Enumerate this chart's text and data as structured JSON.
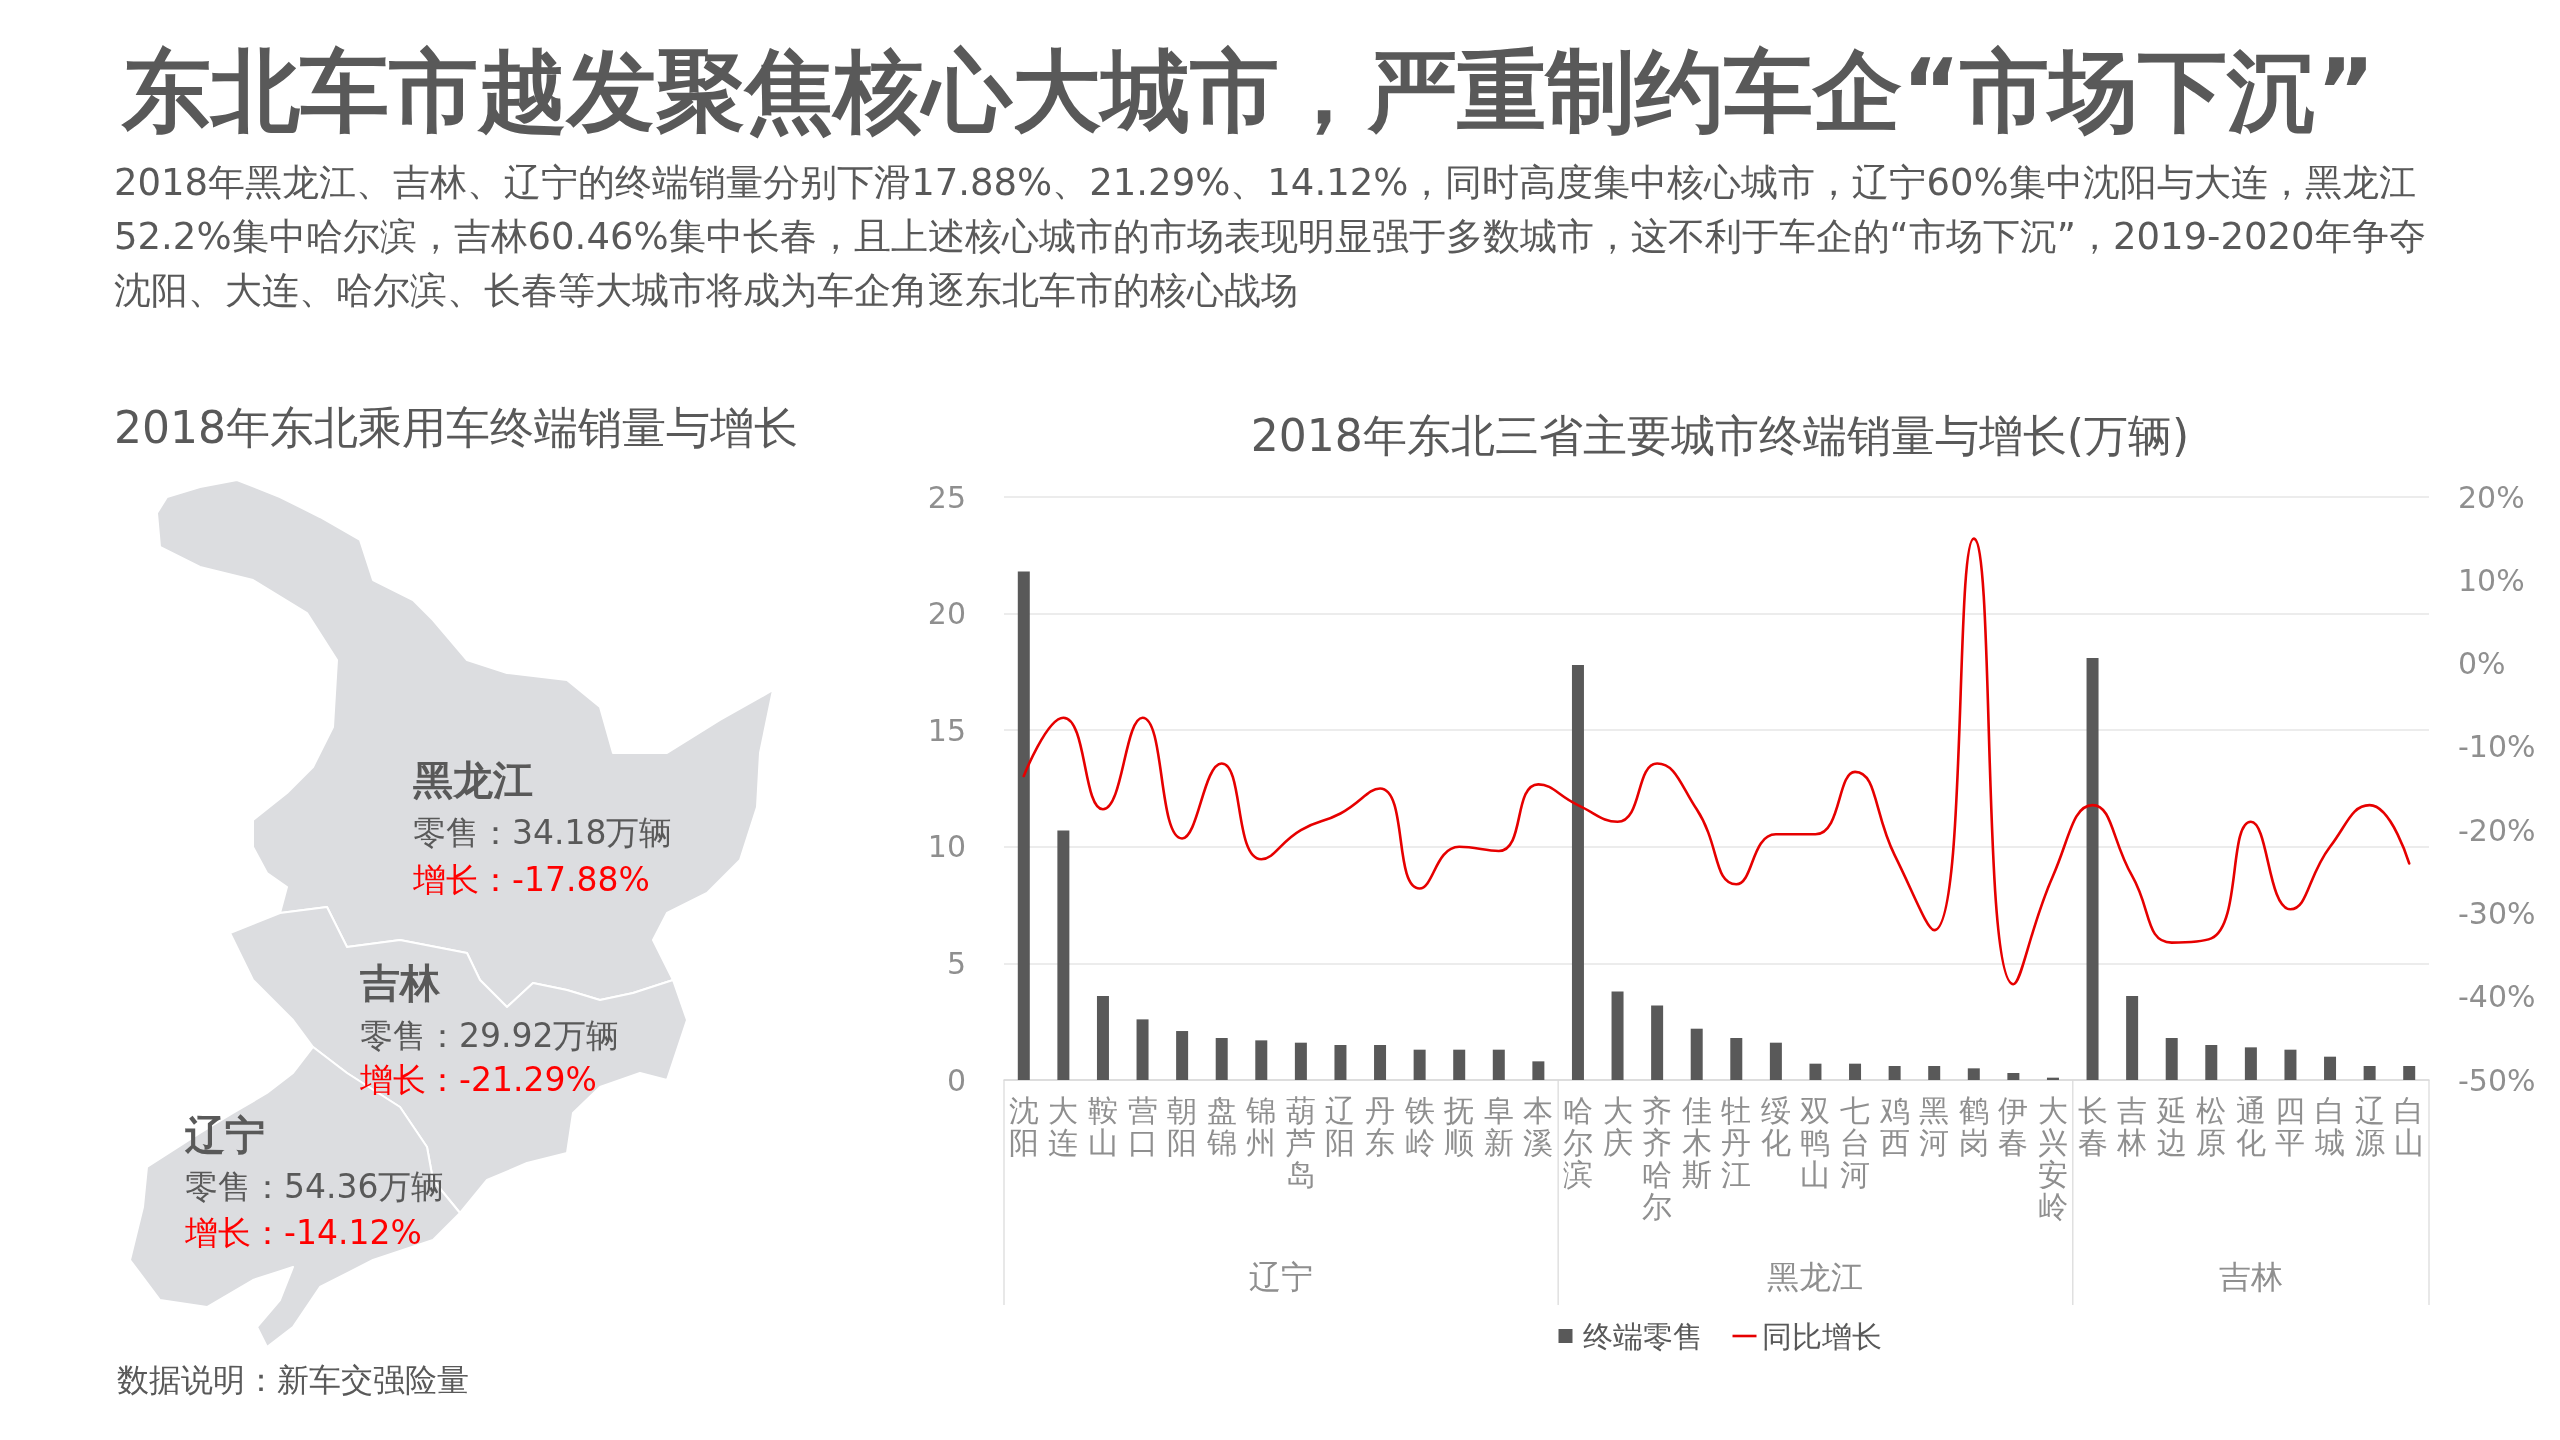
{
  "chart_data": [
    {
      "type": "other",
      "title": "东北车市越发聚焦核心大城市，严重制约车企“市场下沉”",
      "subtitle": "2018年黑龙江、吉林、辽宁的终端销量分别下滑17.88%、21.29%、14.12%，同时高度集中核心城市，辽宁60%集中沈阳与大连，黑龙江52.2%集中哈尔滨，吉林60.46%集中长春，且上述核心城市的市场表现明显强于多数城市，这不利于车企的“市场下沉”，2019-2020年争夺沈阳、大连、哈尔滨、长春等大城市将成为车企角逐东北车市的核心战场"
    },
    {
      "type": "other",
      "title": "2018年东北乘用车终端销量与增长",
      "annotations": [
        "黑龙江",
        "零售：34.18万辆",
        "增长：-17.88%",
        "吉林",
        "零售：29.92万辆",
        "增长：-21.29%",
        "辽宁",
        "零售：54.36万辆",
        "增长：-14.12%",
        "数据说明：新车交强险量"
      ]
    },
    {
      "type": "bar",
      "title": "2018年东北三省主要城市终端销量与增长(万辆)",
      "categories": [
        "沈阳",
        "大连",
        "鞍山",
        "营口",
        "朝阳",
        "盘锦",
        "锦州",
        "葫芦岛",
        "辽阳",
        "丹东",
        "铁岭",
        "抚顺",
        "阜新",
        "本溪",
        "哈尔滨",
        "大庆",
        "齐齐哈尔",
        "佳木斯",
        "牡丹江",
        "绥化",
        "双鸭山",
        "七台河",
        "鸡西",
        "黑河",
        "鹤岗",
        "伊春",
        "大兴安岭",
        "长春",
        "吉林",
        "延边",
        "松原",
        "通化",
        "四平",
        "白城",
        "辽源",
        "白山"
      ],
      "series": [
        {
          "name": "终端零售",
          "type": "bar",
          "color": "#595959",
          "values": [
            21.8,
            10.7,
            3.6,
            2.6,
            2.1,
            1.8,
            1.7,
            1.6,
            1.5,
            1.5,
            1.3,
            1.3,
            1.3,
            0.8,
            17.8,
            3.8,
            3.2,
            2.2,
            1.8,
            1.6,
            0.7,
            0.7,
            0.6,
            0.6,
            0.5,
            0.3,
            0.1,
            18.1,
            3.6,
            1.8,
            1.5,
            1.4,
            1.3,
            1.0,
            0.6,
            0.6
          ]
        },
        {
          "name": "同比增长",
          "type": "line",
          "axis": "y2",
          "color": "#e60000",
          "values": [
            -13.5,
            -6.5,
            -17.5,
            -6.5,
            -21,
            -12,
            -23.5,
            -20,
            -18,
            -15,
            -27,
            -22,
            -22.5,
            -14.5,
            -17,
            -19,
            -12,
            -17.5,
            -26.5,
            -20.5,
            -20.5,
            -13,
            -23,
            -32,
            15,
            -38.5,
            -25.5,
            -17,
            -25.5,
            -33.5,
            -33,
            -19,
            -29.5,
            -22,
            -17,
            -24
          ]
        }
      ],
      "ylim": [
        0,
        25
      ],
      "yticks": [
        0,
        5,
        10,
        15,
        20,
        25
      ],
      "y2lim": [
        -50,
        20
      ],
      "y2ticks": [
        {
          "value": -50,
          "label": "-50%"
        },
        {
          "value": -40,
          "label": "-40%"
        },
        {
          "value": -30,
          "label": "-30%"
        },
        {
          "value": -20,
          "label": "-20%"
        },
        {
          "value": -10,
          "label": "-10%"
        },
        {
          "value": 0,
          "label": "0%"
        },
        {
          "value": 10,
          "label": "10%"
        },
        {
          "value": 20,
          "label": "20%"
        }
      ],
      "annotations": [
        "辽宁",
        "黑龙江",
        "吉林"
      ],
      "grid": "y",
      "legend": "bottom",
      "marker": "none",
      "line_style": "solid"
    }
  ]
}
